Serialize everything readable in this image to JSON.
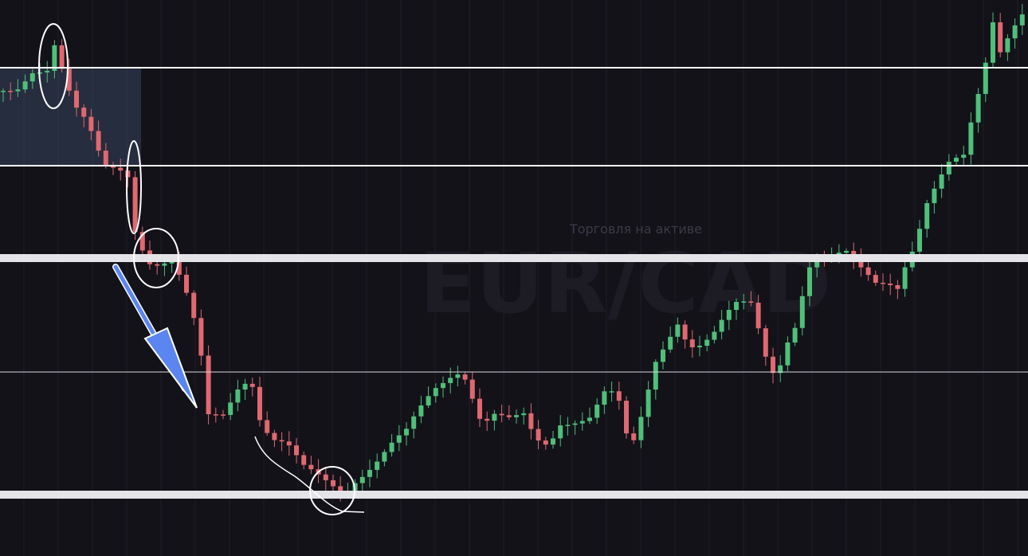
{
  "watermark": {
    "subtitle": "Торговля на активе",
    "symbol": "EUR/CAD"
  }
}
